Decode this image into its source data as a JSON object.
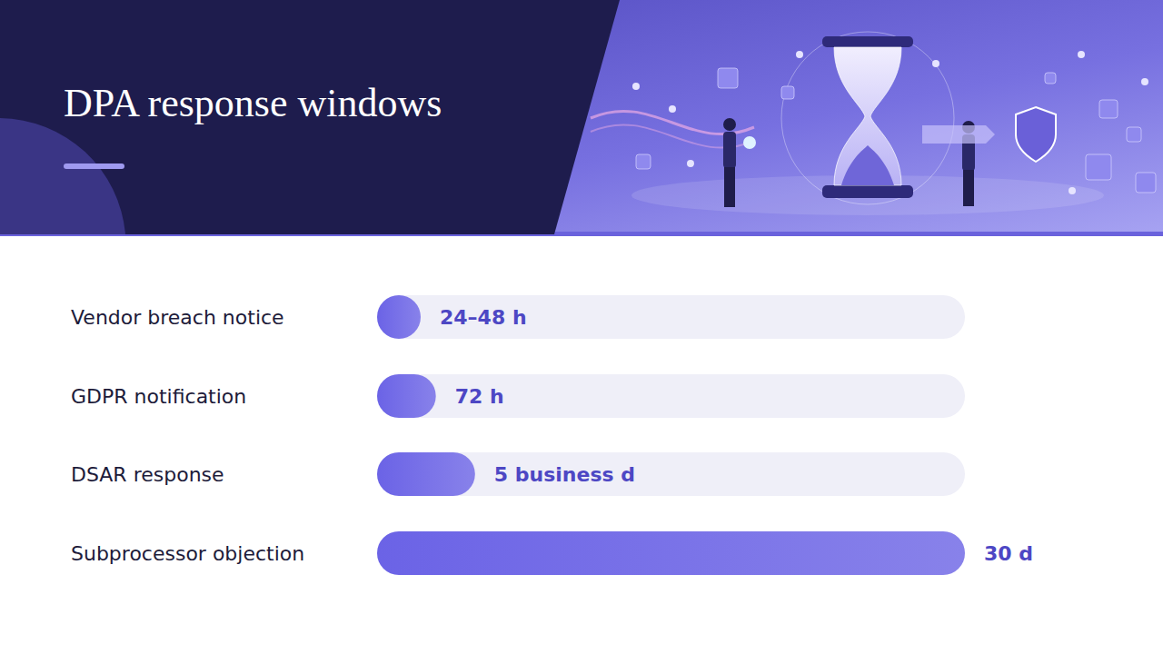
{
  "chart_data": {
    "type": "bar",
    "orientation": "horizontal",
    "title": "DPA response windows",
    "categories": [
      "Vendor breach notice",
      "GDPR notification",
      "DSAR response",
      "Subprocessor objection"
    ],
    "values": [
      48,
      72,
      120,
      720
    ],
    "value_labels": [
      "24–48 h",
      "72 h",
      "5 business d",
      "30 d"
    ],
    "color": "#6b63e6",
    "xlim": [
      0,
      720
    ],
    "tick_labels": false,
    "data_labels": true,
    "grid": false
  }
}
